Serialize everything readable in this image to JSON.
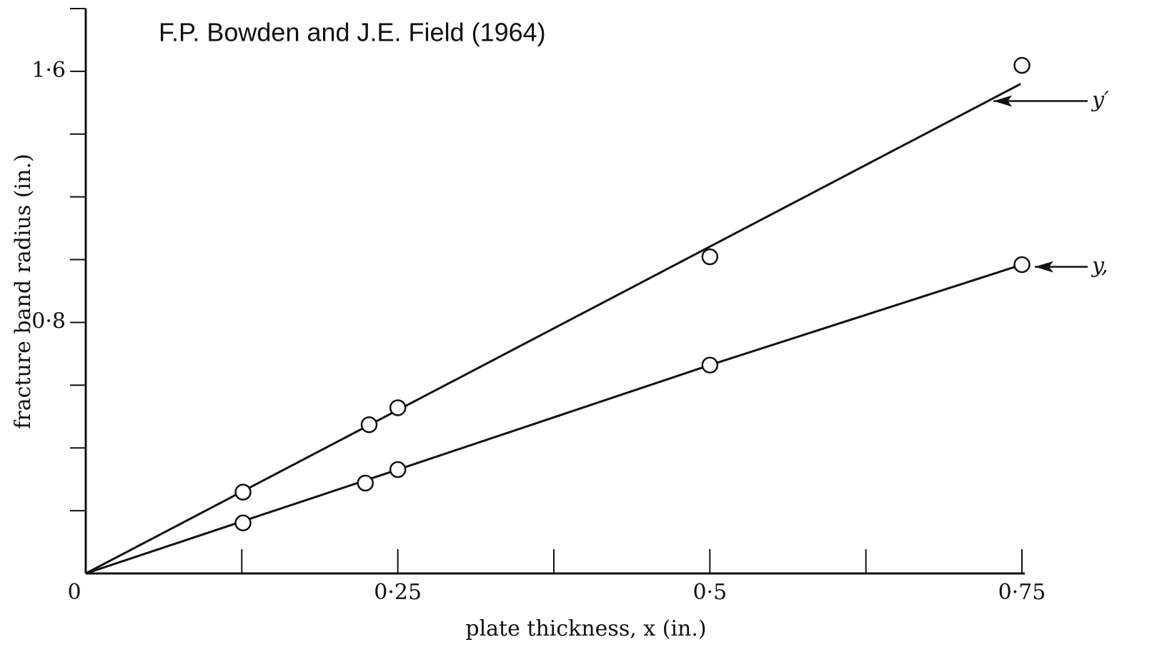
{
  "chart_data": {
    "type": "scatter",
    "title": "F.P. Bowden and J.E. Field (1964)",
    "x_label": "plate thickness, x (in.)",
    "y_label": "fracture band radius (in.)",
    "xlim": [
      0,
      0.75
    ],
    "ylim": [
      0,
      1.8
    ],
    "xticks": [
      0,
      {
        "value": 0.25,
        "label": "0·25"
      },
      {
        "value": 0.5,
        "label": "0·5"
      },
      {
        "value": 0.75,
        "label": "0·75"
      }
    ],
    "xticks_minor": [
      0.125,
      0.375,
      0.625
    ],
    "yticks": [
      {
        "value": 0.8,
        "label": "0·8"
      },
      {
        "value": 1.6,
        "label": "1·6"
      }
    ],
    "yticks_minor": [
      0.2,
      0.4,
      0.6,
      1.0,
      1.2,
      1.4
    ],
    "color": "#111111",
    "series": [
      {
        "name": "y′",
        "x": [
          0.126,
          0.227,
          0.25,
          0.5,
          0.75
        ],
        "values": [
          0.259,
          0.474,
          0.528,
          1.009,
          1.619
        ],
        "line": {
          "x": [
            0,
            0.749
          ],
          "values": [
            0,
            1.56
          ]
        }
      },
      {
        "name": "y,",
        "x": [
          0.126,
          0.224,
          0.25,
          0.5,
          0.75
        ],
        "values": [
          0.161,
          0.288,
          0.331,
          0.664,
          0.984
        ],
        "line": {
          "x": [
            0,
            0.25,
            0.5,
            0.75
          ],
          "values": [
            0,
            0.331,
            0.664,
            0.984
          ]
        }
      }
    ]
  }
}
